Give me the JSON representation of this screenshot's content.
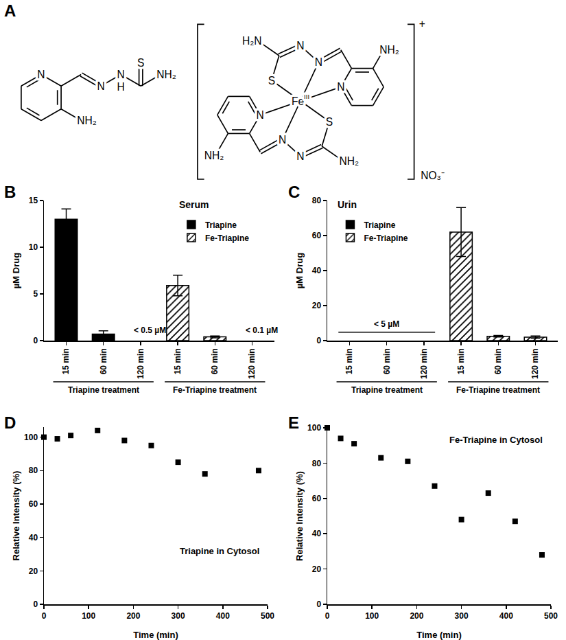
{
  "panel_labels": [
    "A",
    "B",
    "C",
    "D",
    "E"
  ],
  "structures": {
    "ligand": {
      "atoms": [
        "N",
        "N",
        "N",
        "H",
        "S",
        "NH₂",
        "NH₂"
      ]
    },
    "complex": {
      "atoms": [
        "H₂N",
        "N",
        "N",
        "N",
        "S",
        "NH₂",
        "N",
        "S",
        "N",
        "N",
        "NH₂",
        "NH₂"
      ],
      "metal": {
        "text": "Fe",
        "superscript": "III"
      },
      "charge": "+",
      "counterion": "NO₃⁻"
    }
  },
  "chart_data": [
    {
      "type": "bar",
      "title": "Serum",
      "ylabel": "µM Drug",
      "categories": [
        "15 min",
        "60 min",
        "120 min",
        "15 min",
        "60 min",
        "120 min"
      ],
      "groups": [
        {
          "label": "Triapine treatment",
          "span": [
            0,
            2
          ]
        },
        {
          "label": "Fe-Triapine treatment",
          "span": [
            3,
            5
          ]
        }
      ],
      "series": [
        {
          "name": "Triapine",
          "color": "#000000",
          "marker": "solid",
          "values": [
            13.0,
            0.7,
            null,
            null,
            null,
            null
          ],
          "errors": [
            1.1,
            0.35,
            null,
            null,
            null,
            null
          ]
        },
        {
          "name": "Fe-Triapine",
          "color": "#000000",
          "marker": "hatched",
          "values": [
            null,
            null,
            null,
            5.9,
            0.4,
            null
          ],
          "errors": [
            null,
            null,
            null,
            1.1,
            0.1,
            null
          ]
        }
      ],
      "annotations": [
        {
          "text": "< 0.5 µM",
          "category": 2
        },
        {
          "text": "< 0.1 µM",
          "category": 5
        }
      ],
      "ylim": [
        0,
        15
      ],
      "yticks": [
        0,
        5,
        10,
        15
      ],
      "legend": "top right",
      "grid": false
    },
    {
      "type": "bar",
      "title": "Urin",
      "ylabel": "µM Drug",
      "categories": [
        "15 min",
        "60 min",
        "120 min",
        "15 min",
        "60 min",
        "120 min"
      ],
      "groups": [
        {
          "label": "Triapine treatment",
          "span": [
            0,
            2
          ]
        },
        {
          "label": "Fe-Triapine treatment",
          "span": [
            3,
            5
          ]
        }
      ],
      "series": [
        {
          "name": "Triapine",
          "color": "#000000",
          "marker": "solid",
          "values": [
            null,
            null,
            null,
            null,
            null,
            null
          ],
          "errors": [
            null,
            null,
            null,
            null,
            null,
            null
          ]
        },
        {
          "name": "Fe-Triapine",
          "color": "#000000",
          "marker": "hatched",
          "values": [
            null,
            null,
            null,
            62,
            2.5,
            2
          ],
          "errors": [
            null,
            null,
            null,
            14,
            0.4,
            0.6
          ]
        }
      ],
      "annotations": [
        {
          "text": "< 5 µM",
          "span": [
            0,
            2
          ]
        }
      ],
      "ylim": [
        0,
        80
      ],
      "yticks": [
        0,
        20,
        40,
        60,
        80
      ],
      "legend": "top left",
      "grid": false
    },
    {
      "type": "scatter",
      "xlabel": "Time (min)",
      "ylabel": "Relative Intensity (%)",
      "x": [
        0,
        30,
        60,
        120,
        180,
        240,
        300,
        360,
        480
      ],
      "values": [
        100,
        99,
        101,
        104,
        98,
        95,
        85,
        78,
        80
      ],
      "color": "#000000",
      "marker": "square",
      "annotations": [
        {
          "text": "Triapine in Cytosol"
        }
      ],
      "xlim": [
        0,
        500
      ],
      "xticks": [
        0,
        100,
        200,
        300,
        400,
        500
      ],
      "ylim": [
        0,
        106
      ],
      "yticks": [
        0,
        20,
        40,
        60,
        80,
        100
      ],
      "grid": false
    },
    {
      "type": "scatter",
      "xlabel": "Time (min)",
      "ylabel": "Relative Intensity (%)",
      "x": [
        0,
        30,
        60,
        120,
        180,
        240,
        300,
        360,
        420,
        480
      ],
      "values": [
        100,
        94,
        91,
        83,
        81,
        67,
        48,
        63,
        47,
        28
      ],
      "color": "#000000",
      "marker": "square",
      "annotations": [
        {
          "text": "Fe-Triapine in Cytosol"
        }
      ],
      "xlim": [
        0,
        500
      ],
      "xticks": [
        0,
        100,
        200,
        300,
        400,
        500
      ],
      "ylim": [
        0,
        100
      ],
      "yticks": [
        0,
        20,
        40,
        60,
        80,
        100
      ],
      "grid": false
    }
  ]
}
